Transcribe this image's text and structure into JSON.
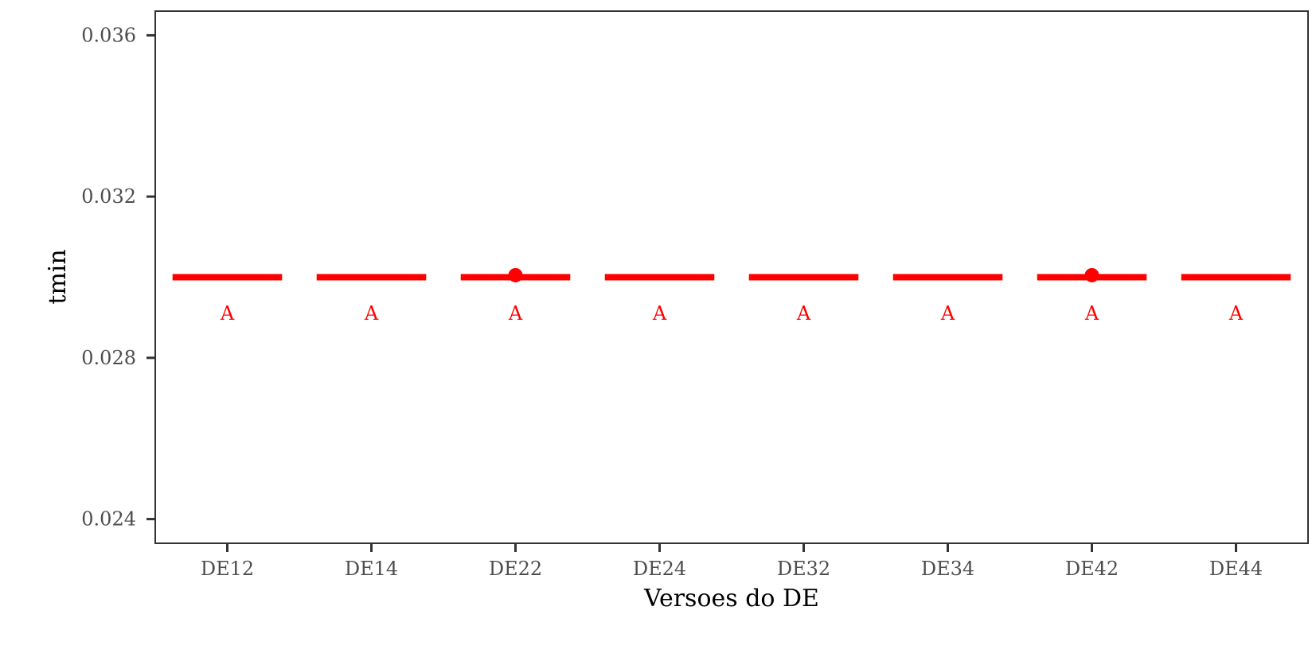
{
  "chart_data": {
    "type": "scatter",
    "xlabel": "Versoes do DE",
    "ylabel": "tmin",
    "categories": [
      "DE12",
      "DE14",
      "DE22",
      "DE24",
      "DE32",
      "DE34",
      "DE42",
      "DE44"
    ],
    "ylim": [
      0.0234,
      0.0366
    ],
    "yticks": [
      0.024,
      0.028,
      0.032,
      0.036
    ],
    "ytick_labels": [
      "0.024",
      "0.028",
      "0.032",
      "0.036"
    ],
    "grid": false,
    "legend": "none",
    "series": [
      {
        "kind": "range",
        "values": [
          0.03,
          0.03,
          0.03,
          0.03,
          0.03,
          0.03,
          0.03,
          0.03
        ]
      },
      {
        "kind": "points",
        "points": [
          {
            "x": "DE22",
            "y": 0.03005
          },
          {
            "x": "DE42",
            "y": 0.03005
          }
        ]
      }
    ],
    "annotations": [
      {
        "x": "DE12",
        "y": 0.0291,
        "text": "A"
      },
      {
        "x": "DE14",
        "y": 0.0291,
        "text": "A"
      },
      {
        "x": "DE22",
        "y": 0.0291,
        "text": "A"
      },
      {
        "x": "DE24",
        "y": 0.0291,
        "text": "A"
      },
      {
        "x": "DE32",
        "y": 0.0291,
        "text": "A"
      },
      {
        "x": "DE34",
        "y": 0.0291,
        "text": "A"
      },
      {
        "x": "DE42",
        "y": 0.0291,
        "text": "A"
      },
      {
        "x": "DE44",
        "y": 0.0291,
        "text": "A"
      }
    ],
    "colors": {
      "marks": "#ff0000",
      "axis": "#333333",
      "tick_text": "#4d4d4d",
      "title_text": "#000000"
    }
  }
}
